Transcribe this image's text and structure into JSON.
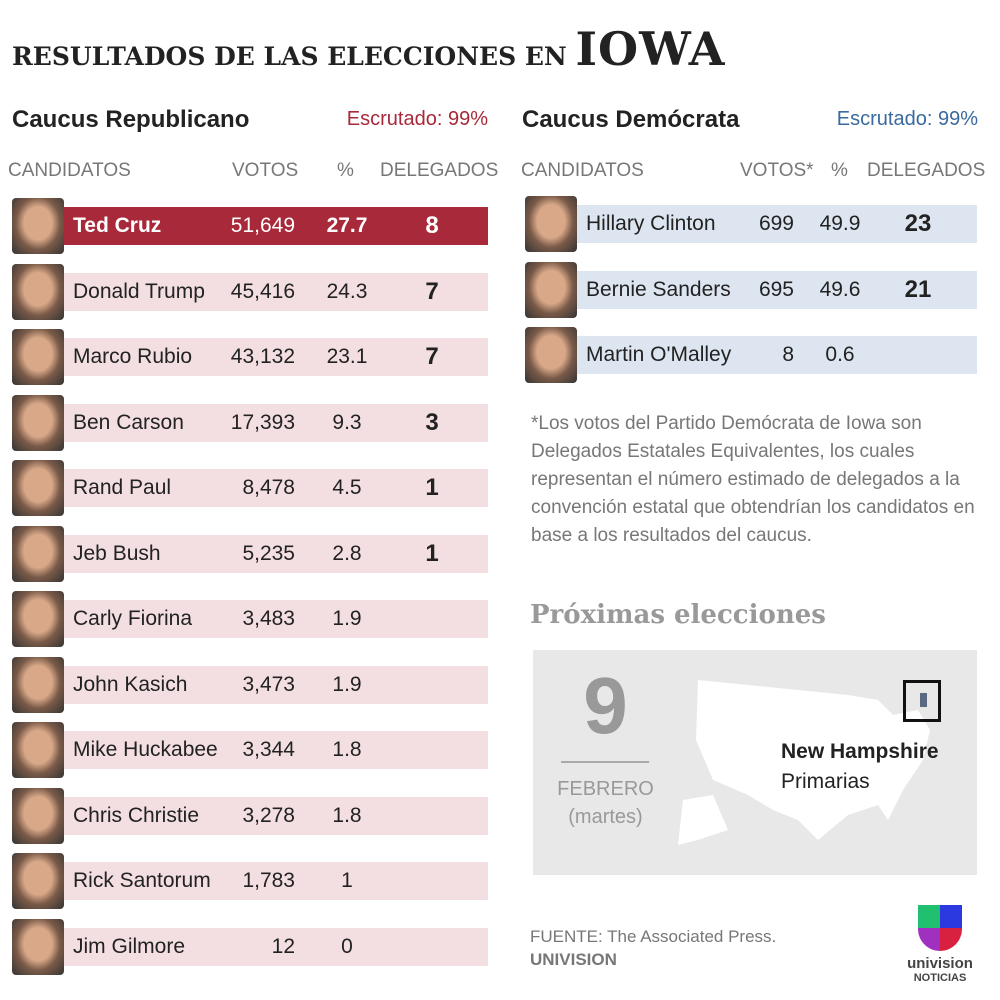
{
  "title": {
    "prefix": "RESULTADOS DE LAS ELECCIONES EN",
    "state": "IOWA"
  },
  "republican": {
    "title": "Caucus Republicano",
    "counted": "Escrutado: 99%",
    "color": "#a8293a",
    "row_color": "#f3dfe2",
    "headers": [
      "CANDIDATOS",
      "VOTOS",
      "%",
      "DELEGADOS"
    ],
    "rows": [
      {
        "name": "Ted Cruz",
        "votes": "51,649",
        "pct": "27.7",
        "delegates": "8"
      },
      {
        "name": "Donald Trump",
        "votes": "45,416",
        "pct": "24.3",
        "delegates": "7"
      },
      {
        "name": "Marco Rubio",
        "votes": "43,132",
        "pct": "23.1",
        "delegates": "7"
      },
      {
        "name": "Ben Carson",
        "votes": "17,393",
        "pct": "9.3",
        "delegates": "3"
      },
      {
        "name": "Rand Paul",
        "votes": "8,478",
        "pct": "4.5",
        "delegates": "1"
      },
      {
        "name": "Jeb Bush",
        "votes": "5,235",
        "pct": "2.8",
        "delegates": "1"
      },
      {
        "name": "Carly Fiorina",
        "votes": "3,483",
        "pct": "1.9",
        "delegates": ""
      },
      {
        "name": "John Kasich",
        "votes": "3,473",
        "pct": "1.9",
        "delegates": ""
      },
      {
        "name": "Mike Huckabee",
        "votes": "3,344",
        "pct": "1.8",
        "delegates": ""
      },
      {
        "name": "Chris Christie",
        "votes": "3,278",
        "pct": "1.8",
        "delegates": ""
      },
      {
        "name": "Rick Santorum",
        "votes": "1,783",
        "pct": "1",
        "delegates": ""
      },
      {
        "name": "Jim Gilmore",
        "votes": "12",
        "pct": "0",
        "delegates": ""
      }
    ]
  },
  "democrat": {
    "title": "Caucus Demócrata",
    "counted": "Escrutado: 99%",
    "color": "#3a6a9e",
    "row_color": "#dde6f0",
    "headers": [
      "CANDIDATOS",
      "VOTOS*",
      "%",
      "DELEGADOS"
    ],
    "rows": [
      {
        "name": "Hillary Clinton",
        "votes": "699",
        "pct": "49.9",
        "delegates": "23"
      },
      {
        "name": "Bernie Sanders",
        "votes": "695",
        "pct": "49.6",
        "delegates": "21"
      },
      {
        "name": "Martin O'Malley",
        "votes": "8",
        "pct": "0.6",
        "delegates": ""
      }
    ]
  },
  "note": "*Los votos del Partido Demócrata de Iowa son Delegados Estatales Equivalentes, los cuales representan el número estimado de delegados a la convención estatal que obtendrían los candidatos en base a los resultados del caucus.",
  "next": {
    "heading": "Próximas elecciones",
    "day": "9",
    "month": "FEBRERO",
    "weekday": "(martes)",
    "state": "New Hampshire",
    "type": "Primarias"
  },
  "footer": {
    "source": "FUENTE: The Associated Press.",
    "brand": "UNIVISION",
    "logo_text": "univision",
    "logo_sub": "NOTICIAS"
  }
}
